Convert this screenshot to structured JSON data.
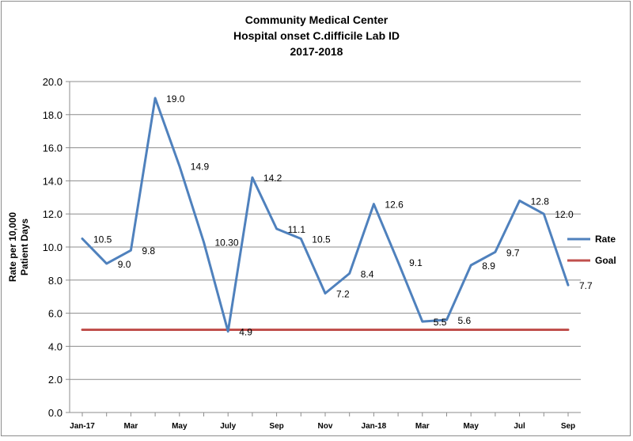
{
  "chart_data": {
    "type": "line",
    "title": [
      "Community Medical Center",
      "Hospital onset C.difficile Lab ID",
      "2017-2018"
    ],
    "ylabel": [
      "Rate per 10,000",
      "Patient Days"
    ],
    "xlabel": "",
    "ylim": [
      0,
      20
    ],
    "yticks": [
      "0.0",
      "2.0",
      "4.0",
      "6.0",
      "8.0",
      "10.0",
      "12.0",
      "14.0",
      "16.0",
      "18.0",
      "20.0"
    ],
    "grid": true,
    "legend_position": "right",
    "tick_labels": [
      "Jan-17",
      "Mar",
      "May",
      "July",
      "Sep",
      "Nov",
      "Jan-18",
      "Mar",
      "May",
      "Jul",
      "Sep"
    ],
    "series": [
      {
        "name": "Rate",
        "color": "#4f81bd",
        "values": [
          10.5,
          9.0,
          9.8,
          19.0,
          14.9,
          10.3,
          4.9,
          14.2,
          11.1,
          10.5,
          7.2,
          8.4,
          12.6,
          9.1,
          5.5,
          5.6,
          8.9,
          9.7,
          12.8,
          12.0,
          7.7
        ],
        "labels": [
          "10.5",
          "9.0",
          "9.8",
          "19.0",
          "14.9",
          "10.30",
          "4.9",
          "14.2",
          "11.1",
          "10.5",
          "7.2",
          "8.4",
          "12.6",
          "9.1",
          "5.5",
          "5.6",
          "8.9",
          "9.7",
          "12.8",
          "12.0",
          "7.7"
        ]
      },
      {
        "name": "Goal",
        "color": "#c0504d",
        "values": [
          5,
          5,
          5,
          5,
          5,
          5,
          5,
          5,
          5,
          5,
          5,
          5,
          5,
          5,
          5,
          5,
          5,
          5,
          5,
          5,
          5
        ]
      }
    ]
  }
}
